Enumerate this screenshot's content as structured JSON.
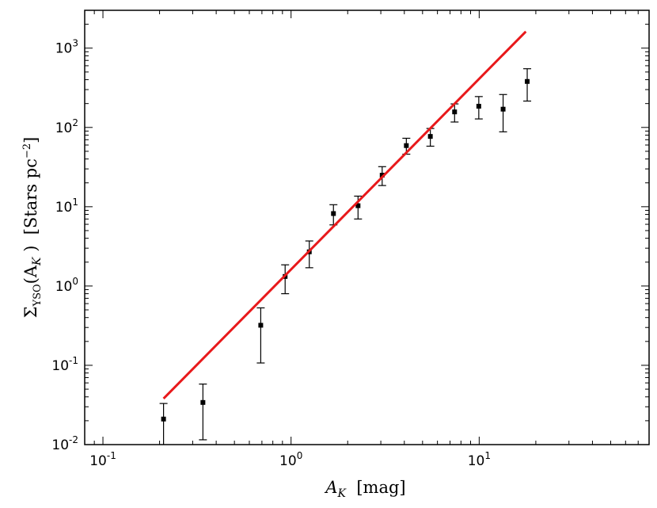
{
  "chart_data": {
    "type": "scatter",
    "x_scale": "log",
    "y_scale": "log",
    "xlim": [
      0.08,
      80
    ],
    "ylim": [
      0.01,
      3000
    ],
    "xlabel": {
      "main": "A",
      "sub": "K",
      "unit": "  [mag]"
    },
    "ylabel": {
      "main": "Σ",
      "sub1": "YSO",
      "mid1": "(A",
      "sub2": "K",
      "mid2": " )  [Stars pc",
      "sup": "−2",
      "tail": "]"
    },
    "x_ticks": [
      {
        "value": 0.1,
        "base": "10",
        "exp": "-1"
      },
      {
        "value": 1,
        "base": "10",
        "exp": "0"
      },
      {
        "value": 10,
        "base": "10",
        "exp": "1"
      }
    ],
    "y_ticks": [
      {
        "value": 0.01,
        "base": "10",
        "exp": "-2"
      },
      {
        "value": 0.1,
        "base": "10",
        "exp": "-1"
      },
      {
        "value": 1,
        "base": "10",
        "exp": "0"
      },
      {
        "value": 10,
        "base": "10",
        "exp": "1"
      },
      {
        "value": 100,
        "base": "10",
        "exp": "2"
      },
      {
        "value": 1000,
        "base": "10",
        "exp": "3"
      }
    ],
    "grid": false,
    "series": [
      {
        "kind": "points_with_errorbars",
        "color": "#000000",
        "points": [
          {
            "x": 0.21,
            "y": 0.021,
            "ylow": 0.01,
            "yhigh": 0.033
          },
          {
            "x": 0.34,
            "y": 0.034,
            "ylow": 0.0115,
            "yhigh": 0.058
          },
          {
            "x": 0.69,
            "y": 0.32,
            "ylow": 0.107,
            "yhigh": 0.53
          },
          {
            "x": 0.93,
            "y": 1.32,
            "ylow": 0.8,
            "yhigh": 1.85
          },
          {
            "x": 1.25,
            "y": 2.7,
            "ylow": 1.7,
            "yhigh": 3.7
          },
          {
            "x": 1.68,
            "y": 8.2,
            "ylow": 5.9,
            "yhigh": 10.6
          },
          {
            "x": 2.27,
            "y": 10.3,
            "ylow": 7.0,
            "yhigh": 13.6
          },
          {
            "x": 3.05,
            "y": 25.0,
            "ylow": 18.5,
            "yhigh": 32.0
          },
          {
            "x": 4.1,
            "y": 59.0,
            "ylow": 46.0,
            "yhigh": 73.0
          },
          {
            "x": 5.5,
            "y": 77.0,
            "ylow": 58.0,
            "yhigh": 97.0
          },
          {
            "x": 7.4,
            "y": 157.0,
            "ylow": 117.0,
            "yhigh": 198.0
          },
          {
            "x": 9.95,
            "y": 185.0,
            "ylow": 128.0,
            "yhigh": 245.0
          },
          {
            "x": 13.4,
            "y": 170.0,
            "ylow": 88.0,
            "yhigh": 260.0
          },
          {
            "x": 18.0,
            "y": 380.0,
            "ylow": 215.0,
            "yhigh": 550.0
          }
        ]
      },
      {
        "kind": "fit_line",
        "color": "#e8191b",
        "x": [
          0.21,
          17.7
        ],
        "y": [
          0.038,
          1620
        ]
      }
    ]
  }
}
